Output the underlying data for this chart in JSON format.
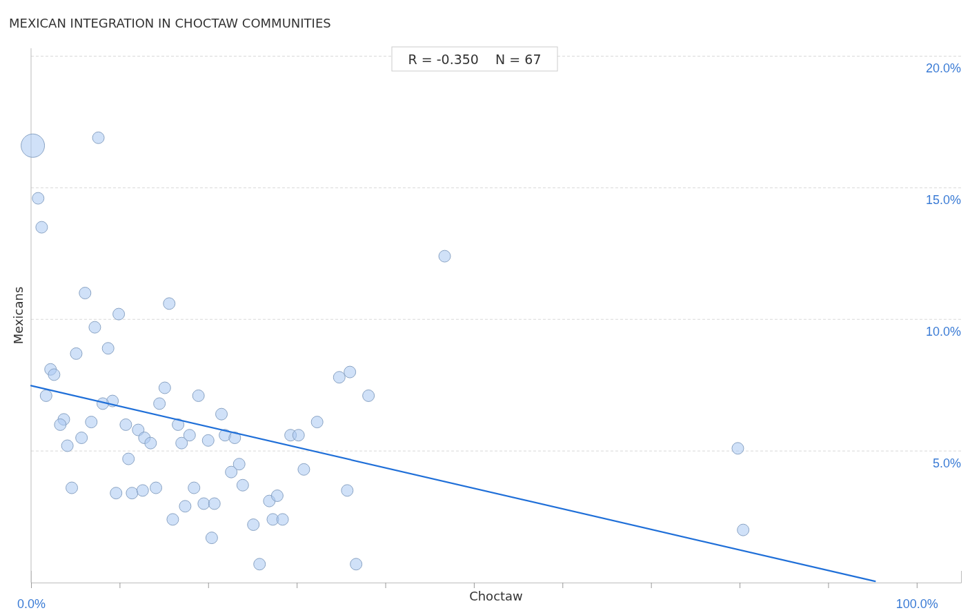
{
  "chart_data": {
    "type": "bubble",
    "title": "MEXICAN INTEGRATION IN CHOCTAW COMMUNITIES",
    "xlabel": "Choctaw",
    "ylabel": "Mexicans",
    "annotations": [
      "R = -0.350    N = 67"
    ],
    "xlim": [
      0,
      105
    ],
    "ylim": [
      0,
      20.3
    ],
    "xticks": [
      {
        "value": 0,
        "label": "0.0%"
      },
      {
        "value": 10,
        "label": null
      },
      {
        "value": 20,
        "label": null
      },
      {
        "value": 30,
        "label": null
      },
      {
        "value": 40,
        "label": null
      },
      {
        "value": 50,
        "label": null
      },
      {
        "value": 60,
        "label": null
      },
      {
        "value": 70,
        "label": null
      },
      {
        "value": 80,
        "label": null
      },
      {
        "value": 90,
        "label": null
      },
      {
        "value": 100,
        "label": "100.0%"
      }
    ],
    "yticks": [
      {
        "value": 5,
        "label": "5.0%"
      },
      {
        "value": 10,
        "label": "10.0%"
      },
      {
        "value": 15,
        "label": "15.0%"
      },
      {
        "value": 20,
        "label": "20.0%"
      }
    ],
    "grid": "y",
    "series": [
      {
        "color": "#a9c9f2",
        "x": [
          0.2,
          0.8,
          1.2,
          7.6,
          46.7,
          6.1,
          15.6,
          9.9,
          7.2,
          8.7,
          5.1,
          2.2,
          2.6,
          1.7,
          15.1,
          9.2,
          8.1,
          14.5,
          18.9,
          3.7,
          3.3,
          6.8,
          10.7,
          16.6,
          21.5,
          12.1,
          5.7,
          12.8,
          13.5,
          4.1,
          17.0,
          17.9,
          20.0,
          21.9,
          23.0,
          11.0,
          23.5,
          22.6,
          4.6,
          9.6,
          11.4,
          12.6,
          14.1,
          18.4,
          23.9,
          17.4,
          19.5,
          20.7,
          16.0,
          20.4,
          25.1,
          26.9,
          27.8,
          27.3,
          28.4,
          25.8,
          29.3,
          30.2,
          32.3,
          30.8,
          34.8,
          36.0,
          38.1,
          35.7,
          36.7,
          79.8,
          80.4
        ],
        "values": [
          16.6,
          14.6,
          13.5,
          16.9,
          12.4,
          11.0,
          10.6,
          10.2,
          9.7,
          8.9,
          8.7,
          8.1,
          7.9,
          7.1,
          7.4,
          6.9,
          6.8,
          6.8,
          7.1,
          6.2,
          6.0,
          6.1,
          6.0,
          6.0,
          6.4,
          5.8,
          5.5,
          5.5,
          5.3,
          5.2,
          5.3,
          5.6,
          5.4,
          5.6,
          5.5,
          4.7,
          4.5,
          4.2,
          3.6,
          3.4,
          3.4,
          3.5,
          3.6,
          3.6,
          3.7,
          2.9,
          3.0,
          3.0,
          2.4,
          1.7,
          2.2,
          3.1,
          3.3,
          2.4,
          2.4,
          0.7,
          5.6,
          5.6,
          6.1,
          4.3,
          7.8,
          8.0,
          7.1,
          3.5,
          0.7,
          5.1,
          2.0
        ],
        "sizes": [
          1,
          0.25,
          0.25,
          0.25,
          0.25,
          0.25,
          0.25,
          0.25,
          0.25,
          0.25,
          0.25,
          0.25,
          0.25,
          0.25,
          0.25,
          0.25,
          0.25,
          0.25,
          0.25,
          0.25,
          0.25,
          0.25,
          0.25,
          0.25,
          0.25,
          0.25,
          0.25,
          0.25,
          0.25,
          0.25,
          0.25,
          0.25,
          0.25,
          0.25,
          0.25,
          0.25,
          0.25,
          0.25,
          0.25,
          0.25,
          0.25,
          0.25,
          0.25,
          0.25,
          0.25,
          0.25,
          0.25,
          0.25,
          0.25,
          0.25,
          0.25,
          0.25,
          0.25,
          0.25,
          0.25,
          0.25,
          0.25,
          0.25,
          0.25,
          0.25,
          0.25,
          0.25,
          0.25,
          0.25,
          0.25,
          0.25,
          0.25
        ]
      },
      {
        "type": "line",
        "color": "#1f6fd8",
        "x": [
          0,
          95.3
        ],
        "values": [
          7.48,
          0.05
        ]
      }
    ]
  }
}
